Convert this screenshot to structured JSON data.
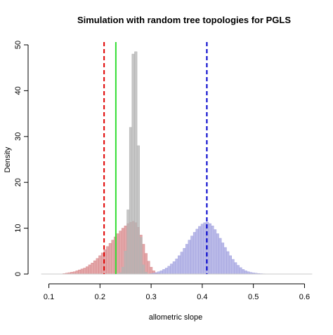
{
  "chart_data": {
    "type": "histogram",
    "title": "Simulation with random tree topologies for PGLS",
    "xlabel": "allometric slope",
    "ylabel": "Density",
    "xlim": [
      0.08,
      0.62
    ],
    "ylim": [
      0,
      50
    ],
    "x_ticks": [
      0.1,
      0.2,
      0.3,
      0.4,
      0.5,
      0.6
    ],
    "x_tick_labels": [
      "0.1",
      "0.2",
      "0.3",
      "0.4",
      "0.5",
      "0.6"
    ],
    "y_ticks": [
      0,
      10,
      20,
      30,
      40,
      50
    ],
    "y_tick_labels": [
      "0",
      "10",
      "20",
      "30",
      "40",
      "50"
    ],
    "grid": false,
    "bin_width": 0.005,
    "series": [
      {
        "color": "#d9898c",
        "bins": [
          [
            0.13,
            0.1
          ],
          [
            0.135,
            0.2
          ],
          [
            0.14,
            0.3
          ],
          [
            0.145,
            0.4
          ],
          [
            0.15,
            0.5
          ],
          [
            0.155,
            0.7
          ],
          [
            0.16,
            0.9
          ],
          [
            0.165,
            1.1
          ],
          [
            0.17,
            1.3
          ],
          [
            0.175,
            1.6
          ],
          [
            0.18,
            2.0
          ],
          [
            0.185,
            2.4
          ],
          [
            0.19,
            2.9
          ],
          [
            0.195,
            3.4
          ],
          [
            0.2,
            4.0
          ],
          [
            0.205,
            4.6
          ],
          [
            0.21,
            5.3
          ],
          [
            0.215,
            6.0
          ],
          [
            0.22,
            6.7
          ],
          [
            0.225,
            7.4
          ],
          [
            0.23,
            8.1
          ],
          [
            0.235,
            8.8
          ],
          [
            0.24,
            9.4
          ],
          [
            0.245,
            10.0
          ],
          [
            0.25,
            10.5
          ],
          [
            0.255,
            11.0
          ],
          [
            0.26,
            11.3
          ],
          [
            0.265,
            11.5
          ],
          [
            0.27,
            11.2
          ],
          [
            0.275,
            10.2
          ],
          [
            0.28,
            8.5
          ],
          [
            0.285,
            6.5
          ],
          [
            0.29,
            4.5
          ],
          [
            0.295,
            2.8
          ],
          [
            0.3,
            1.5
          ],
          [
            0.305,
            0.7
          ],
          [
            0.31,
            0.3
          ],
          [
            0.315,
            0.1
          ]
        ]
      },
      {
        "color": "#a3a3e0",
        "bins": [
          [
            0.3,
            0.1
          ],
          [
            0.305,
            0.2
          ],
          [
            0.31,
            0.3
          ],
          [
            0.315,
            0.5
          ],
          [
            0.32,
            0.7
          ],
          [
            0.325,
            1.0
          ],
          [
            0.33,
            1.3
          ],
          [
            0.335,
            1.7
          ],
          [
            0.34,
            2.2
          ],
          [
            0.345,
            2.7
          ],
          [
            0.35,
            3.3
          ],
          [
            0.355,
            4.0
          ],
          [
            0.36,
            4.8
          ],
          [
            0.365,
            5.6
          ],
          [
            0.37,
            6.5
          ],
          [
            0.375,
            7.4
          ],
          [
            0.38,
            8.3
          ],
          [
            0.385,
            9.1
          ],
          [
            0.39,
            9.8
          ],
          [
            0.395,
            10.4
          ],
          [
            0.4,
            10.9
          ],
          [
            0.405,
            11.2
          ],
          [
            0.41,
            11.3
          ],
          [
            0.415,
            11.0
          ],
          [
            0.42,
            10.5
          ],
          [
            0.425,
            9.7
          ],
          [
            0.43,
            8.8
          ],
          [
            0.435,
            7.8
          ],
          [
            0.44,
            6.8
          ],
          [
            0.445,
            5.8
          ],
          [
            0.45,
            4.9
          ],
          [
            0.455,
            4.0
          ],
          [
            0.46,
            3.2
          ],
          [
            0.465,
            2.5
          ],
          [
            0.47,
            1.9
          ],
          [
            0.475,
            1.4
          ],
          [
            0.48,
            1.0
          ],
          [
            0.485,
            0.7
          ],
          [
            0.49,
            0.5
          ],
          [
            0.495,
            0.35
          ],
          [
            0.5,
            0.25
          ],
          [
            0.505,
            0.18
          ],
          [
            0.51,
            0.12
          ],
          [
            0.515,
            0.08
          ],
          [
            0.52,
            0.05
          ]
        ]
      },
      {
        "color": "#b3b3b3",
        "bins": [
          [
            0.24,
            0.3
          ],
          [
            0.245,
            1.5
          ],
          [
            0.25,
            5.0
          ],
          [
            0.255,
            14.0
          ],
          [
            0.26,
            32.0
          ],
          [
            0.265,
            48.0
          ],
          [
            0.27,
            48.5
          ],
          [
            0.275,
            28.0
          ],
          [
            0.28,
            8.0
          ],
          [
            0.285,
            2.0
          ],
          [
            0.29,
            0.4
          ]
        ]
      }
    ],
    "vlines": [
      {
        "x": 0.208,
        "color": "#e00000",
        "dashed": true
      },
      {
        "x": 0.231,
        "color": "#33dd33",
        "dashed": false
      },
      {
        "x": 0.409,
        "color": "#0000cc",
        "dashed": true
      }
    ]
  }
}
